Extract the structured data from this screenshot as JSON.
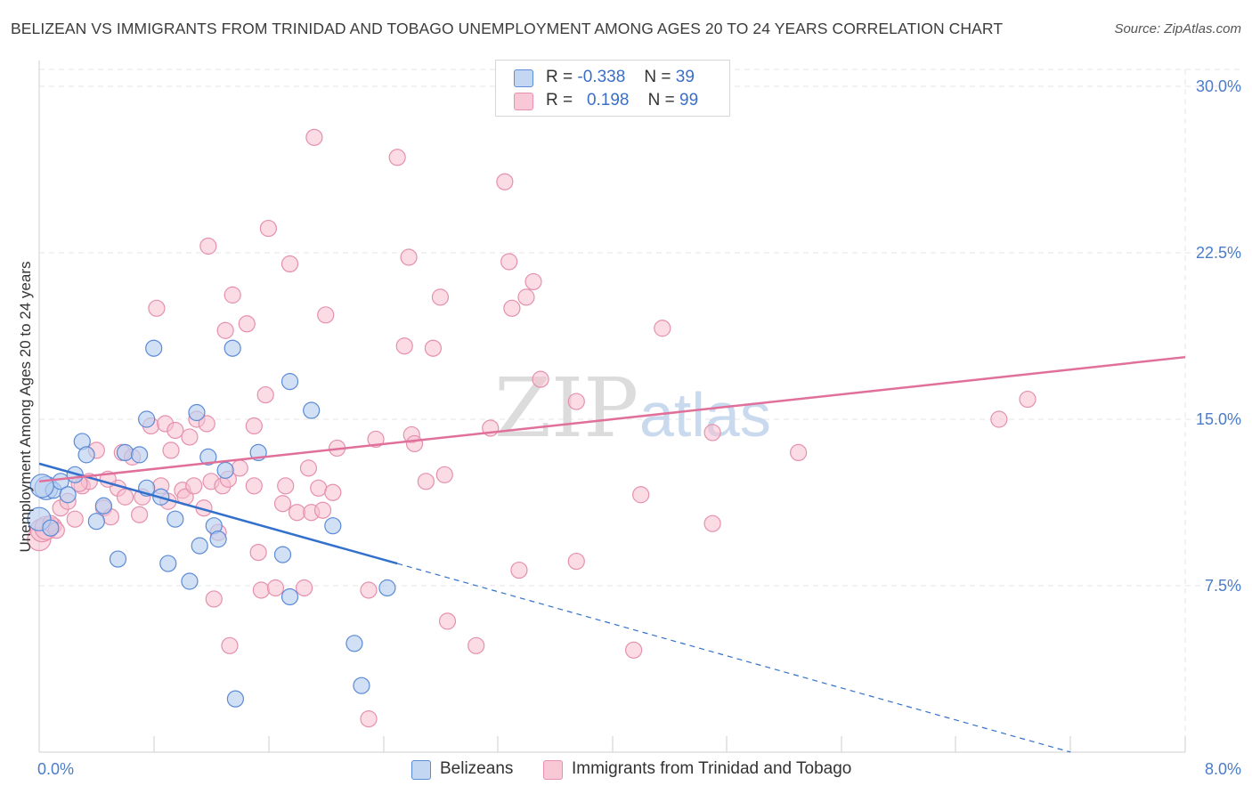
{
  "title": "BELIZEAN VS IMMIGRANTS FROM TRINIDAD AND TOBAGO UNEMPLOYMENT AMONG AGES 20 TO 24 YEARS CORRELATION CHART",
  "source": "Source: ZipAtlas.com",
  "watermark": {
    "zip": "ZIP",
    "atlas": "atlas"
  },
  "colors": {
    "blue": "#4a7cc9",
    "blue_fill": "#b8d0f0",
    "blue_line": "#3370cc",
    "pink_fill": "#f7bfd0",
    "pink_stroke": "#e590ae",
    "pink_line": "#e0709a",
    "grid": "#e6e6e6"
  },
  "legend_top": {
    "rows": [
      {
        "r_label": "R =",
        "r_value": "-0.338",
        "n_label": "N =",
        "n_value": "39"
      },
      {
        "r_label": "R =",
        "r_value": "0.198",
        "n_label": "N =",
        "n_value": "99"
      }
    ]
  },
  "legend_bottom": [
    "Belizeans",
    "Immigrants from Trinidad and Tobago"
  ],
  "chart_data": {
    "type": "scatter",
    "title": "BELIZEAN VS IMMIGRANTS FROM TRINIDAD AND TOBAGO UNEMPLOYMENT AMONG AGES 20 TO 24 YEARS CORRELATION CHART",
    "xlabel": "",
    "ylabel": "Unemployment Among Ages 20 to 24 years",
    "xlim": [
      0,
      8
    ],
    "ylim": [
      0,
      30
    ],
    "x_tick_labels": [
      "0.0%",
      "8.0%"
    ],
    "y_ticks": [
      7.5,
      15.0,
      22.5,
      30.0
    ],
    "y_tick_labels": [
      "7.5%",
      "15.0%",
      "22.5%",
      "30.0%"
    ],
    "grid": true,
    "legend_position": "top-center",
    "series": [
      {
        "name": "Belizeans",
        "r": -0.338,
        "n": 39,
        "trend": {
          "x0": 0,
          "y0": 13.0,
          "x1": 2.5,
          "y1": 8.5,
          "dashed_to_x": 7.2,
          "dashed_to_y": 0
        },
        "points": [
          [
            0.05,
            11.9
          ],
          [
            0.1,
            11.8
          ],
          [
            0.15,
            12.2
          ],
          [
            0.2,
            11.6
          ],
          [
            0.25,
            12.5
          ],
          [
            0.3,
            14.0
          ],
          [
            0.33,
            13.4
          ],
          [
            0.4,
            10.4
          ],
          [
            0.45,
            11.1
          ],
          [
            0.55,
            8.7
          ],
          [
            0.6,
            13.5
          ],
          [
            0.7,
            13.4
          ],
          [
            0.75,
            15.0
          ],
          [
            0.75,
            11.9
          ],
          [
            0.8,
            18.2
          ],
          [
            0.85,
            11.5
          ],
          [
            0.9,
            8.5
          ],
          [
            0.95,
            10.5
          ],
          [
            1.05,
            7.7
          ],
          [
            1.1,
            15.3
          ],
          [
            1.12,
            9.3
          ],
          [
            1.18,
            13.3
          ],
          [
            1.22,
            10.2
          ],
          [
            1.25,
            9.6
          ],
          [
            1.3,
            12.7
          ],
          [
            1.35,
            18.2
          ],
          [
            1.37,
            2.4
          ],
          [
            1.53,
            13.5
          ],
          [
            1.7,
            8.9
          ],
          [
            1.75,
            16.7
          ],
          [
            1.75,
            7.0
          ],
          [
            1.9,
            15.4
          ],
          [
            2.05,
            10.2
          ],
          [
            2.2,
            4.9
          ],
          [
            2.25,
            3.0
          ],
          [
            2.43,
            7.4
          ],
          [
            0.0,
            10.5
          ],
          [
            0.02,
            12.0
          ],
          [
            0.08,
            10.1
          ]
        ]
      },
      {
        "name": "Immigrants from Trinidad and Tobago",
        "r": 0.198,
        "n": 99,
        "trend": {
          "x0": 0,
          "y0": 12.2,
          "x1": 8,
          "y1": 17.8
        },
        "points": [
          [
            0.0,
            9.6
          ],
          [
            0.02,
            10.0
          ],
          [
            0.05,
            10.1
          ],
          [
            0.1,
            10.2
          ],
          [
            0.15,
            11.0
          ],
          [
            0.2,
            11.3
          ],
          [
            0.25,
            10.5
          ],
          [
            0.3,
            12.0
          ],
          [
            0.35,
            12.2
          ],
          [
            0.4,
            13.6
          ],
          [
            0.45,
            11.0
          ],
          [
            0.5,
            10.6
          ],
          [
            0.55,
            11.9
          ],
          [
            0.58,
            13.5
          ],
          [
            0.6,
            11.5
          ],
          [
            0.65,
            13.3
          ],
          [
            0.7,
            10.7
          ],
          [
            0.72,
            11.5
          ],
          [
            0.78,
            14.7
          ],
          [
            0.82,
            20.0
          ],
          [
            0.85,
            12.0
          ],
          [
            0.88,
            14.8
          ],
          [
            0.9,
            11.3
          ],
          [
            0.92,
            13.6
          ],
          [
            0.95,
            14.5
          ],
          [
            1.0,
            11.8
          ],
          [
            1.02,
            11.5
          ],
          [
            1.05,
            14.2
          ],
          [
            1.08,
            12.0
          ],
          [
            1.1,
            15.0
          ],
          [
            1.15,
            11.0
          ],
          [
            1.17,
            14.8
          ],
          [
            1.18,
            22.8
          ],
          [
            1.2,
            12.2
          ],
          [
            1.22,
            6.9
          ],
          [
            1.25,
            9.9
          ],
          [
            1.28,
            12.0
          ],
          [
            1.3,
            19.0
          ],
          [
            1.32,
            12.3
          ],
          [
            1.33,
            4.8
          ],
          [
            1.35,
            20.6
          ],
          [
            1.4,
            12.8
          ],
          [
            1.45,
            19.3
          ],
          [
            1.5,
            12.0
          ],
          [
            1.5,
            14.7
          ],
          [
            1.53,
            9.0
          ],
          [
            1.55,
            7.3
          ],
          [
            1.58,
            16.1
          ],
          [
            1.6,
            23.6
          ],
          [
            1.65,
            7.4
          ],
          [
            1.7,
            11.2
          ],
          [
            1.72,
            12.0
          ],
          [
            1.75,
            22.0
          ],
          [
            1.8,
            10.8
          ],
          [
            1.85,
            7.4
          ],
          [
            1.88,
            12.8
          ],
          [
            1.9,
            10.8
          ],
          [
            1.92,
            27.7
          ],
          [
            1.95,
            11.9
          ],
          [
            1.98,
            10.9
          ],
          [
            2.0,
            19.7
          ],
          [
            2.05,
            11.7
          ],
          [
            2.08,
            13.7
          ],
          [
            2.3,
            1.5
          ],
          [
            2.3,
            7.3
          ],
          [
            2.35,
            14.1
          ],
          [
            2.5,
            26.8
          ],
          [
            2.55,
            18.3
          ],
          [
            2.58,
            22.3
          ],
          [
            2.6,
            14.3
          ],
          [
            2.62,
            13.9
          ],
          [
            2.7,
            12.2
          ],
          [
            2.75,
            18.2
          ],
          [
            2.8,
            20.5
          ],
          [
            2.83,
            12.5
          ],
          [
            2.85,
            5.9
          ],
          [
            3.05,
            4.8
          ],
          [
            3.15,
            14.6
          ],
          [
            3.25,
            25.7
          ],
          [
            3.28,
            22.1
          ],
          [
            3.3,
            20.0
          ],
          [
            3.35,
            8.2
          ],
          [
            3.4,
            20.5
          ],
          [
            3.45,
            21.2
          ],
          [
            3.5,
            16.8
          ],
          [
            3.75,
            8.6
          ],
          [
            3.75,
            15.8
          ],
          [
            4.15,
            4.6
          ],
          [
            4.2,
            11.6
          ],
          [
            4.35,
            19.1
          ],
          [
            4.7,
            14.4
          ],
          [
            4.7,
            10.3
          ],
          [
            5.3,
            13.5
          ],
          [
            6.7,
            15.0
          ],
          [
            6.9,
            15.9
          ],
          [
            0.08,
            10.3
          ],
          [
            0.12,
            10.0
          ],
          [
            0.28,
            12.1
          ],
          [
            0.48,
            12.3
          ]
        ]
      }
    ]
  }
}
